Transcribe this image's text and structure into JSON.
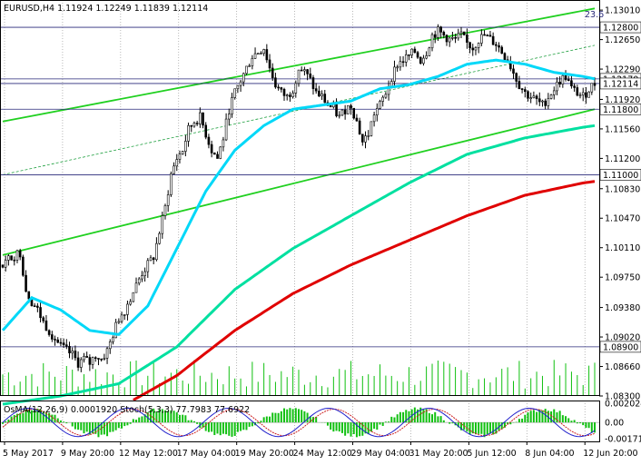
{
  "header": {
    "symbol_line": "EURUSD,H4  1.11924 1.12249 1.11839 1.12114",
    "corner_value": "23.6"
  },
  "chart_data": {
    "type": "candlestick",
    "title": "",
    "colors": {
      "background": "#ffffff",
      "candle": "#000000",
      "ma_fast": "#00d8f8",
      "ma_mid": "#00e0a0",
      "ma_slow": "#e00000",
      "channel": "#20d020",
      "level_line": "#2a2a7a",
      "volume": "#10c010",
      "osma_hist": "#10c010",
      "stoch_main": "#2222cc",
      "stoch_signal": "#cc2222"
    },
    "y_axis": {
      "range": [
        1.083,
        1.131
      ],
      "tick_labels": [
        "1.13010",
        "1.12650",
        "1.12290",
        "1.11920",
        "1.11560",
        "1.11200",
        "1.10830",
        "1.10470",
        "1.10110",
        "1.09750",
        "1.09380",
        "1.09020",
        "1.08660",
        "1.08300"
      ],
      "tick_values": [
        1.1301,
        1.1265,
        1.1229,
        1.1192,
        1.1156,
        1.112,
        1.1083,
        1.1047,
        1.1011,
        1.0975,
        1.0938,
        1.0902,
        1.0866,
        1.083
      ],
      "marked_levels": [
        {
          "label": "1.12800",
          "value": 1.128
        },
        {
          "label": "1.12170",
          "value": 1.1217
        },
        {
          "label": "1.12114",
          "value": 1.12114
        },
        {
          "label": "1.11800",
          "value": 1.118
        },
        {
          "label": "1.11000",
          "value": 1.11
        },
        {
          "label": "1.08900",
          "value": 1.089
        }
      ]
    },
    "x_axis": {
      "tick_labels": [
        "5 May 2017",
        "9 May 20:00",
        "12 May 12:00",
        "17 May 04:00",
        "19 May 20:00",
        "24 May 12:00",
        "29 May 04:00",
        "31 May 20:00",
        "5 Jun 12:00",
        "8 Jun 04:00",
        "12 Jun 20:00"
      ],
      "tick_bar_index": [
        0,
        20,
        40,
        60,
        80,
        100,
        120,
        140,
        160,
        180,
        200
      ]
    },
    "series": [
      {
        "name": "EURUSD H4",
        "close_path": [
          [
            0,
            1.099
          ],
          [
            3,
            1.1
          ],
          [
            6,
            1.1005
          ],
          [
            8,
            1.096
          ],
          [
            10,
            1.0945
          ],
          [
            12,
            1.0935
          ],
          [
            14,
            1.092
          ],
          [
            16,
            1.091
          ],
          [
            18,
            1.09
          ],
          [
            20,
            1.089
          ],
          [
            22,
            1.0885
          ],
          [
            24,
            1.088
          ],
          [
            26,
            1.087
          ],
          [
            28,
            1.0875
          ],
          [
            30,
            1.087
          ],
          [
            32,
            1.088
          ],
          [
            34,
            1.0875
          ],
          [
            36,
            1.0885
          ],
          [
            38,
            1.0905
          ],
          [
            40,
            1.0925
          ],
          [
            42,
            1.0935
          ],
          [
            44,
            1.095
          ],
          [
            46,
            1.0965
          ],
          [
            48,
            1.098
          ],
          [
            50,
            1.099
          ],
          [
            52,
            1.1
          ],
          [
            54,
            1.103
          ],
          [
            56,
            1.106
          ],
          [
            58,
            1.11
          ],
          [
            60,
            1.112
          ],
          [
            62,
            1.113
          ],
          [
            64,
            1.1155
          ],
          [
            66,
            1.1165
          ],
          [
            68,
            1.117
          ],
          [
            70,
            1.115
          ],
          [
            72,
            1.113
          ],
          [
            74,
            1.112
          ],
          [
            76,
            1.1145
          ],
          [
            78,
            1.118
          ],
          [
            80,
            1.12
          ],
          [
            82,
            1.1215
          ],
          [
            84,
            1.123
          ],
          [
            86,
            1.1245
          ],
          [
            88,
            1.125
          ],
          [
            90,
            1.1255
          ],
          [
            92,
            1.123
          ],
          [
            94,
            1.121
          ],
          [
            96,
            1.12
          ],
          [
            98,
            1.1195
          ],
          [
            100,
            1.1205
          ],
          [
            102,
            1.123
          ],
          [
            104,
            1.1225
          ],
          [
            106,
            1.1215
          ],
          [
            108,
            1.12
          ],
          [
            110,
            1.1195
          ],
          [
            112,
            1.1185
          ],
          [
            114,
            1.118
          ],
          [
            116,
            1.117
          ],
          [
            118,
            1.118
          ],
          [
            120,
            1.1185
          ],
          [
            122,
            1.1165
          ],
          [
            124,
            1.114
          ],
          [
            126,
            1.115
          ],
          [
            128,
            1.1175
          ],
          [
            130,
            1.1185
          ],
          [
            132,
            1.12
          ],
          [
            134,
            1.122
          ],
          [
            136,
            1.1235
          ],
          [
            138,
            1.124
          ],
          [
            140,
            1.1245
          ],
          [
            142,
            1.125
          ],
          [
            144,
            1.124
          ],
          [
            146,
            1.125
          ],
          [
            148,
            1.127
          ],
          [
            150,
            1.1275
          ],
          [
            152,
            1.127
          ],
          [
            154,
            1.1265
          ],
          [
            156,
            1.1265
          ],
          [
            158,
            1.127
          ],
          [
            160,
            1.126
          ],
          [
            162,
            1.1255
          ],
          [
            164,
            1.1265
          ],
          [
            166,
            1.127
          ],
          [
            168,
            1.1265
          ],
          [
            170,
            1.126
          ],
          [
            172,
            1.125
          ],
          [
            174,
            1.124
          ],
          [
            176,
            1.1225
          ],
          [
            178,
            1.121
          ],
          [
            180,
            1.12
          ],
          [
            182,
            1.1195
          ],
          [
            184,
            1.119
          ],
          [
            186,
            1.1185
          ],
          [
            188,
            1.1195
          ],
          [
            190,
            1.1205
          ],
          [
            192,
            1.1215
          ],
          [
            194,
            1.122
          ],
          [
            196,
            1.1205
          ],
          [
            198,
            1.12
          ],
          [
            200,
            1.1195
          ],
          [
            202,
            1.1205
          ],
          [
            204,
            1.12114
          ]
        ]
      },
      {
        "name": "MA fast",
        "points": [
          [
            0,
            1.091
          ],
          [
            10,
            1.095
          ],
          [
            20,
            1.0935
          ],
          [
            30,
            1.091
          ],
          [
            40,
            1.0905
          ],
          [
            50,
            1.094
          ],
          [
            60,
            1.101
          ],
          [
            70,
            1.108
          ],
          [
            80,
            1.113
          ],
          [
            90,
            1.116
          ],
          [
            100,
            1.118
          ],
          [
            110,
            1.1185
          ],
          [
            120,
            1.119
          ],
          [
            130,
            1.1205
          ],
          [
            140,
            1.121
          ],
          [
            150,
            1.122
          ],
          [
            160,
            1.1235
          ],
          [
            170,
            1.124
          ],
          [
            180,
            1.1235
          ],
          [
            190,
            1.1225
          ],
          [
            200,
            1.122
          ],
          [
            204,
            1.1217
          ]
        ]
      },
      {
        "name": "MA mid",
        "points": [
          [
            0,
            1.082
          ],
          [
            20,
            1.083
          ],
          [
            40,
            1.0845
          ],
          [
            60,
            1.089
          ],
          [
            80,
            1.096
          ],
          [
            100,
            1.101
          ],
          [
            120,
            1.105
          ],
          [
            140,
            1.109
          ],
          [
            160,
            1.1125
          ],
          [
            180,
            1.1145
          ],
          [
            200,
            1.1158
          ],
          [
            204,
            1.116
          ]
        ]
      },
      {
        "name": "MA slow",
        "points": [
          [
            45,
            1.0825
          ],
          [
            60,
            1.0855
          ],
          [
            80,
            1.091
          ],
          [
            100,
            1.0955
          ],
          [
            120,
            1.099
          ],
          [
            140,
            1.102
          ],
          [
            160,
            1.105
          ],
          [
            180,
            1.1075
          ],
          [
            200,
            1.109
          ],
          [
            204,
            1.1092
          ]
        ]
      }
    ],
    "channel_lines": [
      {
        "p1": [
          0,
          1.1165
        ],
        "p2": [
          204,
          1.1303
        ]
      },
      {
        "p1": [
          0,
          1.1002
        ],
        "p2": [
          204,
          1.118
        ]
      },
      {
        "p1": [
          0,
          1.11
        ],
        "p2": [
          204,
          1.1258
        ]
      }
    ],
    "indicator": {
      "label": "OsMA(12,26,9) 0.0001920  Stoch(5,3,3) 77.7983 77.6922",
      "y_labels": [
        "0.002024",
        "0.00",
        "-0.001715"
      ],
      "y_values": [
        0.002024,
        0.0,
        -0.001715
      ]
    }
  }
}
